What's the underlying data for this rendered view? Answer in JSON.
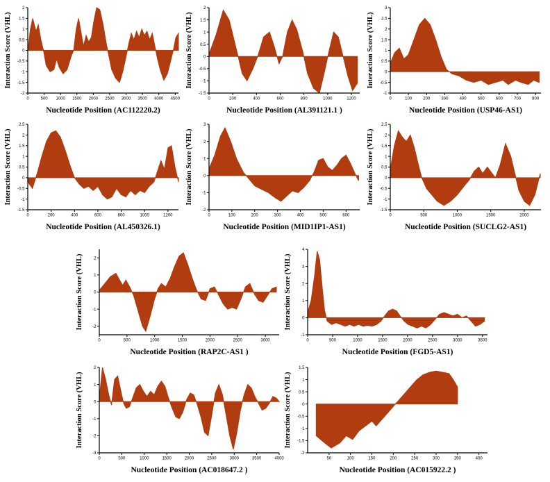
{
  "style": {
    "fill": "#b03c0f",
    "axis": "#000000"
  },
  "chart_data": [
    {
      "type": "area",
      "xlabel": "Nucleotide Position (AC112220.2)",
      "ylabel": "Interaction Score (VHL)",
      "xlim": [
        0,
        4600
      ],
      "ylim": [
        -2,
        2
      ],
      "xticks": [
        0,
        500,
        1000,
        1500,
        2000,
        2500,
        3000,
        3500,
        4000,
        4500
      ],
      "yticks": [
        -2,
        -1.5,
        -1,
        -0.5,
        0,
        0.5,
        1,
        1.5,
        2
      ],
      "x": [
        0,
        80,
        150,
        250,
        320,
        400,
        480,
        560,
        680,
        800,
        880,
        960,
        1080,
        1200,
        1320,
        1400,
        1480,
        1550,
        1620,
        1700,
        1780,
        1860,
        1940,
        2020,
        2100,
        2200,
        2300,
        2400,
        2480,
        2560,
        2680,
        2800,
        2900,
        3000,
        3080,
        3160,
        3240,
        3320,
        3400,
        3480,
        3560,
        3640,
        3720,
        3800,
        3880,
        3960,
        4040,
        4150,
        4260,
        4360,
        4440,
        4520,
        4600
      ],
      "y": [
        0,
        1.0,
        1.5,
        0.9,
        1.2,
        0.5,
        0,
        -0.7,
        -1.0,
        -0.9,
        -0.4,
        -0.8,
        -1.1,
        -0.9,
        -0.3,
        0,
        1.0,
        1.5,
        0.9,
        0.2,
        0.7,
        0.4,
        0.6,
        1.4,
        2.0,
        1.9,
        1.2,
        0.3,
        -0.3,
        -0.9,
        -1.3,
        -1.5,
        -1.0,
        -0.3,
        0.3,
        0.8,
        0.5,
        0.9,
        0.6,
        1.0,
        0.7,
        0.9,
        0.5,
        0.8,
        0.2,
        -0.4,
        -0.9,
        -1.4,
        -1.1,
        -0.5,
        0,
        0.6,
        0.8
      ]
    },
    {
      "type": "area",
      "xlabel": "Nucleotide Position (AL391121.1 )",
      "ylabel": "Interaction Score (VHL)",
      "xlim": [
        0,
        1270
      ],
      "ylim": [
        -1.5,
        2
      ],
      "xticks": [
        0,
        200,
        400,
        600,
        800,
        1000,
        1200
      ],
      "yticks": [
        -1.5,
        -1,
        -0.5,
        0,
        0.5,
        1,
        1.5,
        2
      ],
      "x": [
        0,
        60,
        120,
        170,
        230,
        280,
        320,
        370,
        410,
        460,
        510,
        550,
        590,
        620,
        660,
        700,
        740,
        790,
        830,
        880,
        930,
        970,
        1010,
        1050,
        1090,
        1130,
        1170,
        1210,
        1250
      ],
      "y": [
        0.1,
        0.9,
        1.9,
        1.5,
        0.3,
        -0.7,
        -1.0,
        -0.5,
        0,
        0.8,
        1.0,
        0.4,
        -0.3,
        0,
        1.0,
        1.5,
        1.1,
        0.2,
        -0.7,
        -1.3,
        -1.5,
        -0.7,
        0.2,
        1.0,
        0.8,
        0,
        -0.8,
        -1.4,
        -1.1
      ]
    },
    {
      "type": "area",
      "xlabel": "Nucleotide Position (USP46-AS1)",
      "ylabel": "Interaction Score (VHL)",
      "xlim": [
        0,
        830
      ],
      "ylim": [
        -1,
        3
      ],
      "xticks": [
        0,
        100,
        200,
        300,
        400,
        500,
        600,
        700,
        800
      ],
      "yticks": [
        -1,
        -0.5,
        0,
        0.5,
        1,
        1.5,
        2,
        2.5,
        3
      ],
      "x": [
        0,
        25,
        50,
        75,
        100,
        130,
        160,
        190,
        220,
        250,
        280,
        310,
        340,
        380,
        420,
        460,
        500,
        540,
        580,
        620,
        650,
        690,
        720,
        760,
        790,
        820
      ],
      "y": [
        0.4,
        0.9,
        1.1,
        0.6,
        0.8,
        1.5,
        2.2,
        2.5,
        2.2,
        1.5,
        0.7,
        0.1,
        -0.1,
        -0.2,
        -0.4,
        -0.5,
        -0.4,
        -0.6,
        -0.5,
        -0.4,
        -0.6,
        -0.4,
        -0.5,
        -0.6,
        -0.4,
        -0.5
      ]
    },
    {
      "type": "area",
      "xlabel": "Nucleotide Position (AL450326.1)",
      "ylabel": "Interaction Score (VHL)",
      "xlim": [
        0,
        1290
      ],
      "ylim": [
        -1.5,
        2.5
      ],
      "xticks": [
        0,
        200,
        400,
        600,
        800,
        1000,
        1200
      ],
      "yticks": [
        -1.5,
        -1,
        -0.5,
        0,
        0.5,
        1,
        1.5,
        2,
        2.5
      ],
      "x": [
        0,
        40,
        80,
        120,
        160,
        200,
        240,
        280,
        320,
        360,
        400,
        440,
        480,
        520,
        560,
        600,
        640,
        680,
        720,
        760,
        800,
        840,
        880,
        920,
        960,
        1000,
        1040,
        1080,
        1110,
        1140,
        1170,
        1200,
        1230,
        1260,
        1290
      ],
      "y": [
        -0.2,
        -0.5,
        0.2,
        1.0,
        1.7,
        2.1,
        2.2,
        1.9,
        1.3,
        0.6,
        0,
        -0.3,
        -0.5,
        -0.4,
        -0.6,
        -0.4,
        -0.8,
        -1.0,
        -0.9,
        -0.5,
        -0.8,
        -0.9,
        -0.6,
        -0.8,
        -0.6,
        -0.7,
        -0.4,
        -0.2,
        0.3,
        0.8,
        0.4,
        1.4,
        1.5,
        0.5,
        -0.2
      ]
    },
    {
      "type": "area",
      "xlabel": "Nucleotide Position (MID1IP1-AS1)",
      "ylabel": "Interaction Score (VHL)",
      "xlim": [
        0,
        660
      ],
      "ylim": [
        -2,
        3
      ],
      "xticks": [
        0,
        100,
        200,
        300,
        400,
        500,
        600
      ],
      "yticks": [
        -2,
        -1,
        0,
        1,
        2,
        3
      ],
      "x": [
        0,
        25,
        50,
        70,
        95,
        120,
        150,
        175,
        200,
        230,
        260,
        290,
        315,
        340,
        365,
        390,
        415,
        440,
        460,
        480,
        500,
        520,
        540,
        560,
        580,
        600,
        620,
        640,
        655
      ],
      "y": [
        0.4,
        1.2,
        2.3,
        2.8,
        2.0,
        1.0,
        0.2,
        -0.2,
        -0.6,
        -0.8,
        -1.0,
        -1.3,
        -1.5,
        -1.2,
        -0.9,
        -1.0,
        -0.7,
        -0.3,
        0.2,
        0.9,
        1.0,
        0.5,
        0.3,
        0.6,
        1.0,
        1.2,
        0.7,
        0.1,
        -0.3
      ]
    },
    {
      "type": "area",
      "xlabel": "Nucleotide Position (SUCLG2-AS1)",
      "ylabel": "Interaction Score (VHL)",
      "xlim": [
        0,
        2250
      ],
      "ylim": [
        -1.5,
        2.5
      ],
      "xticks": [
        0,
        500,
        1000,
        1500,
        2000
      ],
      "yticks": [
        -1.5,
        -1,
        -0.5,
        0,
        0.5,
        1,
        1.5,
        2,
        2.5
      ],
      "x": [
        0,
        60,
        120,
        180,
        240,
        300,
        360,
        420,
        470,
        540,
        620,
        700,
        800,
        900,
        1000,
        1100,
        1180,
        1250,
        1320,
        1380,
        1450,
        1520,
        1570,
        1640,
        1720,
        1800,
        1860,
        1920,
        2000,
        2080,
        2160,
        2240
      ],
      "y": [
        0.4,
        1.5,
        2.2,
        1.9,
        1.7,
        2.0,
        1.4,
        0.6,
        0,
        -0.5,
        -0.8,
        -1.1,
        -1.3,
        -1.1,
        -0.8,
        -0.4,
        -0.1,
        0.3,
        0.5,
        0.2,
        0.5,
        0.2,
        0,
        0.6,
        1.6,
        1.0,
        0.2,
        -0.6,
        -1.1,
        -1.3,
        -0.8,
        0.2
      ]
    },
    {
      "type": "area",
      "xlabel": "Nucleotide Position (RAP2C-AS1 )",
      "ylabel": "Interaction Score (VHL)",
      "xlim": [
        0,
        3250
      ],
      "ylim": [
        -2.5,
        2.5
      ],
      "xticks": [
        0,
        500,
        1000,
        1500,
        2000,
        2500,
        3000
      ],
      "yticks": [
        -2,
        -1,
        0,
        1,
        2
      ],
      "x": [
        0,
        100,
        200,
        300,
        350,
        420,
        480,
        550,
        620,
        700,
        780,
        840,
        920,
        1000,
        1060,
        1120,
        1200,
        1280,
        1360,
        1440,
        1520,
        1600,
        1680,
        1760,
        1840,
        1920,
        2000,
        2080,
        2160,
        2240,
        2320,
        2400,
        2480,
        2560,
        2640,
        2720,
        2800,
        2880,
        2960,
        3040,
        3120,
        3200
      ],
      "y": [
        0.1,
        0.5,
        0.9,
        1.1,
        0.8,
        0.4,
        0.7,
        0.3,
        -0.2,
        -1.1,
        -2.0,
        -2.3,
        -1.4,
        -0.4,
        0.2,
        0.5,
        0.3,
        0.8,
        1.5,
        2.1,
        2.3,
        1.6,
        0.8,
        0.1,
        -0.4,
        -0.5,
        0.2,
        0.3,
        -0.2,
        -0.7,
        -1.0,
        -0.9,
        -1.0,
        -0.4,
        0.3,
        0.5,
        -0.1,
        -0.5,
        -0.6,
        -0.2,
        0.2,
        0.3
      ]
    },
    {
      "type": "area",
      "xlabel": "Nucleotide Position (FGD5-AS1)",
      "ylabel": "Interaction Score (VHL)",
      "xlim": [
        0,
        3600
      ],
      "ylim": [
        -1,
        4
      ],
      "xticks": [
        0,
        500,
        1000,
        1500,
        2000,
        2500,
        3000,
        3500
      ],
      "yticks": [
        -1,
        0,
        1,
        2,
        3,
        4
      ],
      "x": [
        0,
        70,
        140,
        190,
        240,
        290,
        340,
        390,
        480,
        570,
        660,
        750,
        840,
        930,
        1020,
        1110,
        1200,
        1290,
        1380,
        1470,
        1540,
        1620,
        1700,
        1780,
        1850,
        1930,
        2010,
        2100,
        2190,
        2280,
        2370,
        2460,
        2550,
        2640,
        2730,
        2820,
        2910,
        3000,
        3090,
        3180,
        3270,
        3360,
        3450,
        3540
      ],
      "y": [
        0.3,
        1.0,
        2.5,
        3.9,
        3.4,
        1.8,
        0.4,
        -0.2,
        -0.4,
        -0.3,
        -0.4,
        -0.5,
        -0.4,
        -0.5,
        -0.4,
        -0.5,
        -0.45,
        -0.5,
        -0.4,
        -0.2,
        0.1,
        0.4,
        0.5,
        0.4,
        0.1,
        -0.2,
        -0.4,
        -0.5,
        -0.6,
        -0.5,
        -0.6,
        -0.4,
        -0.1,
        0.2,
        0.3,
        0.2,
        0.1,
        0.2,
        0,
        0.1,
        -0.2,
        -0.5,
        -0.4,
        -0.2
      ]
    },
    {
      "type": "area",
      "xlabel": "Nucleotide Position (AC018647.2 )",
      "ylabel": "Interaction Score (VHL)",
      "xlim": [
        0,
        4000
      ],
      "ylim": [
        -3,
        2
      ],
      "xticks": [
        0,
        500,
        1000,
        1500,
        2000,
        2500,
        3000,
        3500,
        4000
      ],
      "yticks": [
        -3,
        -2,
        -1,
        0,
        1,
        2
      ],
      "x": [
        0,
        70,
        140,
        210,
        270,
        340,
        410,
        480,
        540,
        600,
        670,
        740,
        820,
        900,
        980,
        1060,
        1140,
        1220,
        1300,
        1380,
        1460,
        1540,
        1620,
        1700,
        1780,
        1860,
        1940,
        2020,
        2100,
        2180,
        2260,
        2340,
        2420,
        2500,
        2580,
        2660,
        2740,
        2820,
        2900,
        2980,
        3060,
        3140,
        3220,
        3300,
        3380,
        3460,
        3540,
        3620,
        3700,
        3780,
        3860,
        3940,
        4000
      ],
      "y": [
        0.2,
        2.0,
        1.3,
        0.4,
        -0.2,
        1.3,
        1.5,
        0.6,
        -0.1,
        -0.4,
        -0.3,
        0.2,
        0.8,
        1.0,
        0.6,
        0.3,
        0.6,
        0.4,
        0.9,
        1.2,
        0.9,
        0.2,
        -0.4,
        -0.9,
        -1.0,
        -0.6,
        0.1,
        0.5,
        0.4,
        -0.2,
        -0.9,
        -1.8,
        -2.0,
        -0.8,
        0.5,
        1.0,
        0.4,
        -0.8,
        -2.0,
        -2.8,
        -1.8,
        -0.5,
        0.4,
        1.0,
        0.8,
        0.3,
        -0.1,
        -0.5,
        -0.4,
        -0.1,
        0.3,
        0.2,
        0
      ]
    },
    {
      "type": "area",
      "xlabel": "Nucleotide Position (AC015922.2 )",
      "ylabel": "Interaction Score (VHL)",
      "xlim": [
        0,
        420
      ],
      "ylim": [
        -2,
        1.5
      ],
      "xticks": [
        50,
        100,
        150,
        200,
        250,
        300,
        350,
        400
      ],
      "yticks": [
        -2,
        -1.5,
        -1,
        -0.5,
        0,
        0.5,
        1,
        1.5
      ],
      "x": [
        20,
        40,
        55,
        75,
        90,
        105,
        120,
        135,
        150,
        160,
        175,
        190,
        200,
        210,
        225,
        240,
        255,
        270,
        285,
        300,
        315,
        330,
        340,
        350
      ],
      "y": [
        -1.3,
        -1.6,
        -1.8,
        -1.6,
        -1.3,
        -1.45,
        -1.1,
        -0.9,
        -0.7,
        -0.9,
        -0.6,
        -0.3,
        -0.1,
        0.1,
        0.4,
        0.7,
        1.0,
        1.2,
        1.3,
        1.35,
        1.3,
        1.25,
        1.0,
        0.7
      ]
    }
  ]
}
